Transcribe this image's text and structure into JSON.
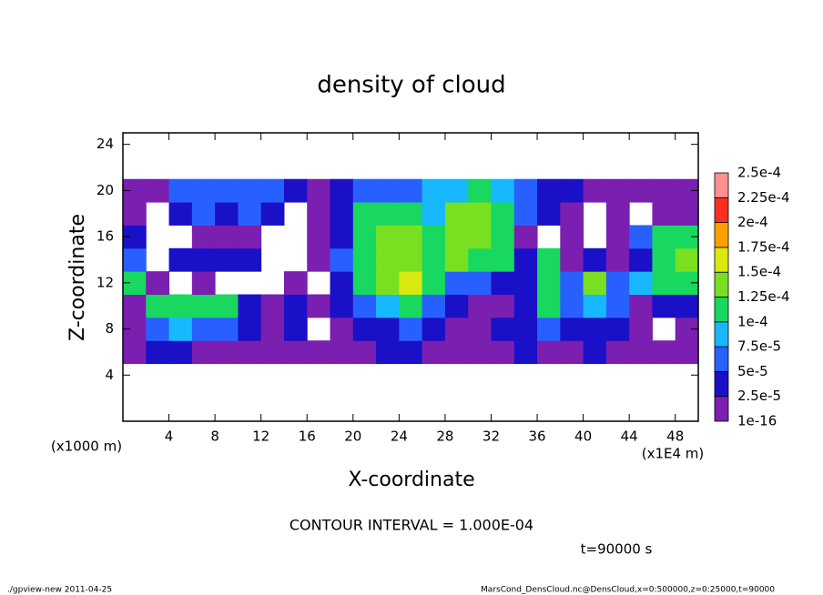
{
  "chart_data": {
    "type": "heatmap",
    "title": "density of cloud",
    "xlabel": "X-coordinate",
    "ylabel": "Z-coordinate",
    "x_unit_label": "(x1E4 m)",
    "y_unit_label": "(x1000 m)",
    "xlim": [
      0,
      50
    ],
    "ylim": [
      0,
      25
    ],
    "xticks": [
      4,
      8,
      12,
      16,
      20,
      24,
      28,
      32,
      36,
      40,
      44,
      48
    ],
    "yticks": [
      4,
      8,
      12,
      16,
      20,
      24
    ],
    "x": [
      1,
      3,
      5,
      7,
      9,
      11,
      13,
      15,
      17,
      19,
      21,
      23,
      25,
      27,
      29,
      31,
      33,
      35,
      37,
      39,
      41,
      43,
      45,
      47,
      49
    ],
    "y": [
      6,
      8,
      10,
      12,
      14,
      16,
      18,
      20
    ],
    "z": [
      [
        2e-05,
        3e-05,
        3e-05,
        1e-05,
        2e-05,
        1e-05,
        1e-05,
        2e-05,
        1e-05,
        2e-05,
        2e-05,
        3e-05,
        3e-05,
        2e-05,
        1e-05,
        1e-05,
        2e-05,
        3e-05,
        2e-05,
        2e-05,
        3e-05,
        2e-05,
        1e-05,
        2e-05,
        2e-05
      ],
      [
        1e-05,
        6e-05,
        8e-05,
        7e-05,
        6e-05,
        4e-05,
        1e-05,
        3e-05,
        null,
        1e-05,
        3e-05,
        4e-05,
        5e-05,
        3e-05,
        1e-05,
        1e-05,
        3e-05,
        4e-05,
        5e-05,
        3e-05,
        4e-05,
        3e-05,
        1e-05,
        null,
        1e-05
      ],
      [
        1e-05,
        0.00011,
        0.0001,
        0.00012,
        0.00011,
        3e-05,
        1e-05,
        3e-05,
        1e-05,
        4e-05,
        7e-05,
        8e-05,
        0.00011,
        5e-05,
        3e-05,
        1e-05,
        1e-05,
        4e-05,
        0.00011,
        5e-05,
        9e-05,
        6e-05,
        1e-05,
        3e-05,
        4e-05
      ],
      [
        0.00011,
        1e-05,
        null,
        1e-05,
        null,
        null,
        null,
        1e-05,
        null,
        3e-05,
        0.00012,
        0.00013,
        0.00016,
        0.00012,
        7e-05,
        6e-05,
        4e-05,
        3e-05,
        0.00011,
        6e-05,
        0.00013,
        5e-05,
        8e-05,
        0.00011,
        0.00012
      ],
      [
        5e-05,
        null,
        3e-05,
        4e-05,
        4e-05,
        3e-05,
        null,
        null,
        1e-05,
        7e-05,
        0.00012,
        0.00014,
        0.00013,
        0.00012,
        0.00013,
        0.00012,
        0.0001,
        3e-05,
        0.00011,
        1e-05,
        3e-05,
        1e-05,
        4e-05,
        0.00012,
        0.00013
      ],
      [
        4e-05,
        null,
        null,
        1e-05,
        1e-05,
        1e-05,
        null,
        null,
        1e-05,
        3e-05,
        0.00012,
        0.00013,
        0.00014,
        0.00011,
        0.00014,
        0.00013,
        0.00011,
        1e-05,
        null,
        1e-05,
        null,
        1e-05,
        5e-05,
        0.00012,
        0.00011
      ],
      [
        1e-05,
        null,
        3e-05,
        5e-05,
        4e-05,
        5e-05,
        4e-05,
        null,
        1e-05,
        3e-05,
        0.00011,
        0.00012,
        0.0001,
        9e-05,
        0.00013,
        0.00014,
        0.00012,
        5e-05,
        3e-05,
        1e-05,
        null,
        1e-05,
        null,
        1e-05,
        1e-05
      ],
      [
        1e-05,
        1e-05,
        6e-05,
        7e-05,
        6e-05,
        7e-05,
        5e-05,
        4e-05,
        1e-05,
        4e-05,
        5e-05,
        6e-05,
        5e-05,
        8e-05,
        9e-05,
        0.00011,
        8e-05,
        6e-05,
        4e-05,
        3e-05,
        1e-05,
        1e-05,
        1e-05,
        1e-05,
        1e-05
      ]
    ],
    "colorbar": {
      "levels": [
        {
          "value": 1e-16,
          "label": "1e-16"
        },
        {
          "value": 2.5e-05,
          "label": "2.5e-5"
        },
        {
          "value": 5e-05,
          "label": "5e-5"
        },
        {
          "value": 7.5e-05,
          "label": "7.5e-5"
        },
        {
          "value": 0.0001,
          "label": "1e-4"
        },
        {
          "value": 0.000125,
          "label": "1.25e-4"
        },
        {
          "value": 0.00015,
          "label": "1.5e-4"
        },
        {
          "value": 0.000175,
          "label": "1.75e-4"
        },
        {
          "value": 0.0002,
          "label": "2e-4"
        },
        {
          "value": 0.000225,
          "label": "2.25e-4"
        },
        {
          "value": 0.00025,
          "label": "2.5e-4"
        }
      ],
      "colors": [
        "#7a1fb0",
        "#1a10c8",
        "#2860ff",
        "#18b8ff",
        "#18d860",
        "#78e020",
        "#d8e810",
        "#ffa000",
        "#ff3020",
        "#ff9090"
      ]
    },
    "annotations": {
      "contour_interval": "CONTOUR INTERVAL = 1.000E-04",
      "time": "t=90000 s"
    },
    "footer_left": "./gpview-new  2011-04-25",
    "footer_right": "MarsCond_DensCloud.nc@DensCloud,x=0:500000,z=0:25000,t=90000"
  }
}
